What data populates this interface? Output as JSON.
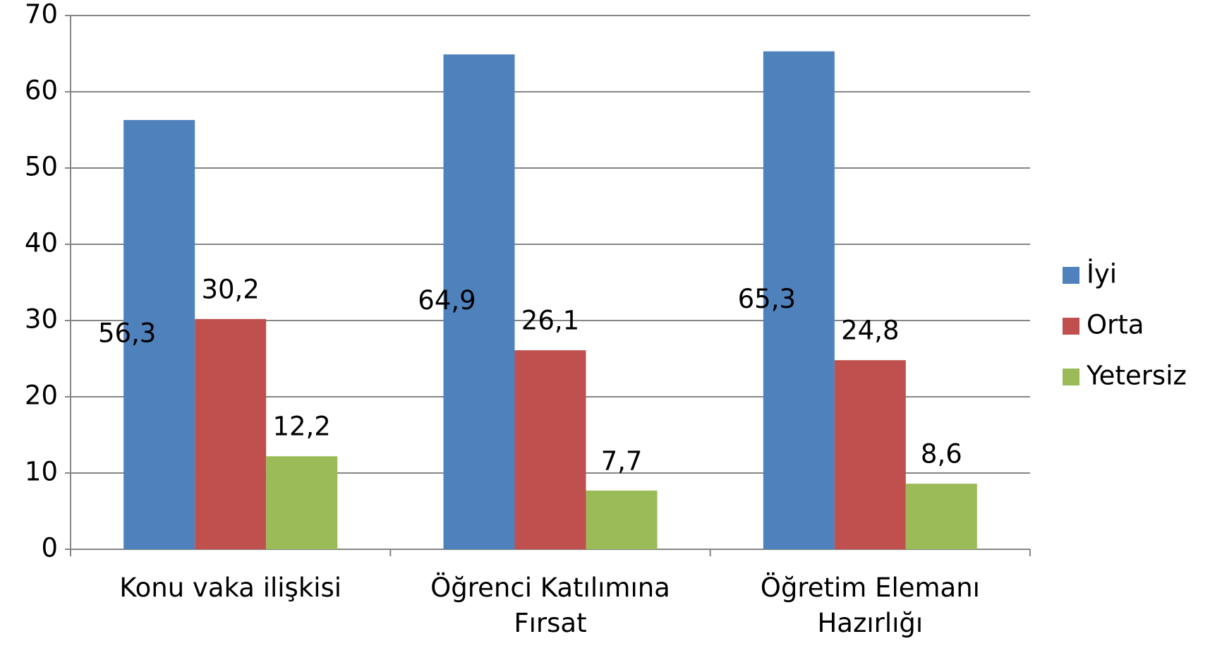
{
  "chart_data": {
    "type": "bar",
    "categories": [
      "Konu vaka ilişkisi",
      "Öğrenci Katılımına Fırsat",
      "Öğretim Elemanı Hazırlığı"
    ],
    "series": [
      {
        "name": "İyi",
        "color": "#4f81bd",
        "values": [
          56.3,
          64.9,
          65.3
        ],
        "value_labels": [
          "56,3",
          "64,9",
          "65,3"
        ]
      },
      {
        "name": "Orta",
        "color": "#c0504d",
        "values": [
          30.2,
          26.1,
          24.8
        ],
        "value_labels": [
          "30,2",
          "26,1",
          "24,8"
        ]
      },
      {
        "name": "Yetersiz",
        "color": "#9bbb59",
        "values": [
          12.2,
          7.7,
          8.6
        ],
        "value_labels": [
          "12,2",
          "7,7",
          "8,6"
        ]
      }
    ],
    "ylim": [
      0,
      70
    ],
    "yticks": [
      0,
      10,
      20,
      30,
      40,
      50,
      60,
      70
    ],
    "grid": true,
    "legend": "right"
  }
}
